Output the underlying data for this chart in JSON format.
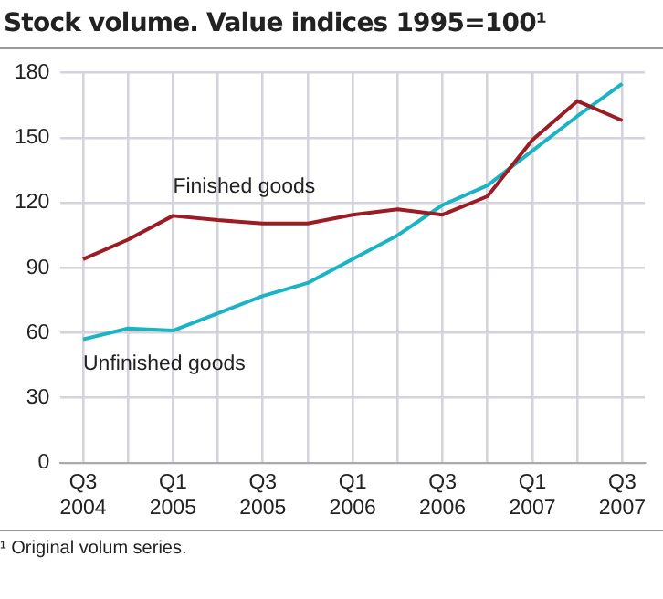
{
  "chart_data": {
    "type": "line",
    "title": "Stock volume. Value indices 1995=100¹",
    "annotations": [
      "¹ Original volum series."
    ],
    "categories": [
      "Q3 2004",
      null,
      "Q1 2005",
      null,
      "Q3 2005",
      null,
      "Q1 2006",
      null,
      "Q3 2006",
      null,
      "Q1 2007",
      null,
      "Q3 2007"
    ],
    "series": [
      {
        "name": "Finished goods",
        "color": "#9b1c24",
        "values": [
          94,
          103,
          114,
          112,
          110.5,
          110.5,
          114.5,
          117,
          114.5,
          123,
          149,
          167,
          158
        ]
      },
      {
        "name": "Unfinished goods",
        "color": "#1bb4c4",
        "values": [
          57,
          62,
          61,
          69,
          77,
          83,
          94,
          105,
          119,
          128,
          144,
          160,
          175
        ]
      }
    ],
    "ylim": [
      0,
      180
    ],
    "yticks": [
      0,
      30,
      60,
      90,
      120,
      150,
      180
    ],
    "grid": true,
    "legend": false,
    "marker": "none",
    "line_style": "solid"
  }
}
